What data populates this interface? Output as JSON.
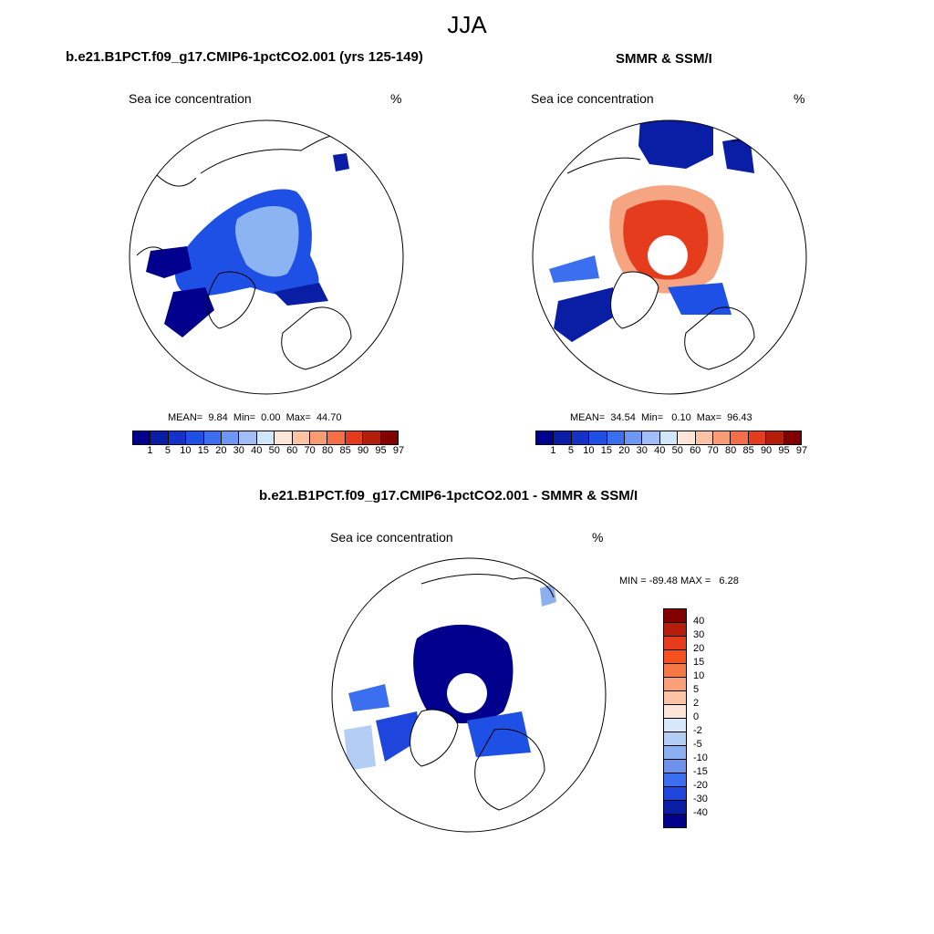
{
  "figure_title": "JJA",
  "panels": [
    {
      "title": "b.e21.B1PCT.f09_g17.CMIP6-1pctCO2.001 (yrs 125-149)",
      "variable": "Sea ice concentration",
      "unit": "%",
      "stats": {
        "mean": "9.84",
        "min": "0.00",
        "max": "44.70"
      },
      "stats_text": "MEAN=  9.84  Min=  0.00  Max=  44.70"
    },
    {
      "title": "SMMR & SSM/I",
      "variable": "Sea ice concentration",
      "unit": "%",
      "stats": {
        "mean": "34.54",
        "min": "0.10",
        "max": "96.43"
      },
      "stats_text": "MEAN=  34.54  Min=   0.10  Max=  96.43"
    },
    {
      "title": "b.e21.B1PCT.f09_g17.CMIP6-1pctCO2.001 - SMMR & SSM/I",
      "variable": "Sea ice concentration",
      "unit": "%",
      "stats_text": "MIN = -89.48 MAX =   6.28"
    }
  ],
  "colorbar_conc": {
    "labels": [
      "1",
      "5",
      "10",
      "15",
      "20",
      "30",
      "40",
      "50",
      "60",
      "70",
      "80",
      "85",
      "90",
      "95",
      "97"
    ],
    "colors": [
      "#00008c",
      "#0a1ea5",
      "#1432c8",
      "#1e50e6",
      "#3c6ef0",
      "#6e96f5",
      "#a0bef5",
      "#d2e6fa",
      "#fde6d7",
      "#fcc3a5",
      "#f99b73",
      "#f56e46",
      "#e63c1e",
      "#b41e0a",
      "#820000"
    ]
  },
  "colorbar_diff": {
    "labels": [
      "40",
      "30",
      "20",
      "15",
      "10",
      "5",
      "2",
      "0",
      "-2",
      "-5",
      "-10",
      "-15",
      "-20",
      "-30",
      "-40"
    ],
    "colors": [
      "#820000",
      "#b41e0a",
      "#e63c1e",
      "#f5501e",
      "#f57846",
      "#f9a078",
      "#fcc3a5",
      "#fde6d7",
      "#d7e8fa",
      "#b4cdf5",
      "#8caff0",
      "#6e91ec",
      "#3c6ef0",
      "#1e46dc",
      "#0a1ea5",
      "#00008c"
    ]
  },
  "chart_data": [
    {
      "type": "heatmap",
      "title": "b.e21.B1PCT.f09_g17.CMIP6-1pctCO2.001 (yrs 125-149)",
      "variable": "Sea ice concentration",
      "unit": "%",
      "mean": 9.84,
      "min": 0.0,
      "max": 44.7,
      "levels": [
        1,
        5,
        10,
        15,
        20,
        30,
        40,
        50,
        60,
        70,
        80,
        85,
        90,
        95,
        97
      ]
    },
    {
      "type": "heatmap",
      "title": "SMMR & SSM/I",
      "variable": "Sea ice concentration",
      "unit": "%",
      "mean": 34.54,
      "min": 0.1,
      "max": 96.43,
      "levels": [
        1,
        5,
        10,
        15,
        20,
        30,
        40,
        50,
        60,
        70,
        80,
        85,
        90,
        95,
        97
      ]
    },
    {
      "type": "heatmap",
      "title": "b.e21.B1PCT.f09_g17.CMIP6-1pctCO2.001 - SMMR & SSM/I",
      "variable": "Sea ice concentration",
      "unit": "%",
      "min": -89.48,
      "max": 6.28,
      "levels": [
        -40,
        -30,
        -20,
        -15,
        -10,
        -5,
        -2,
        0,
        2,
        5,
        10,
        15,
        20,
        30,
        40
      ]
    }
  ]
}
